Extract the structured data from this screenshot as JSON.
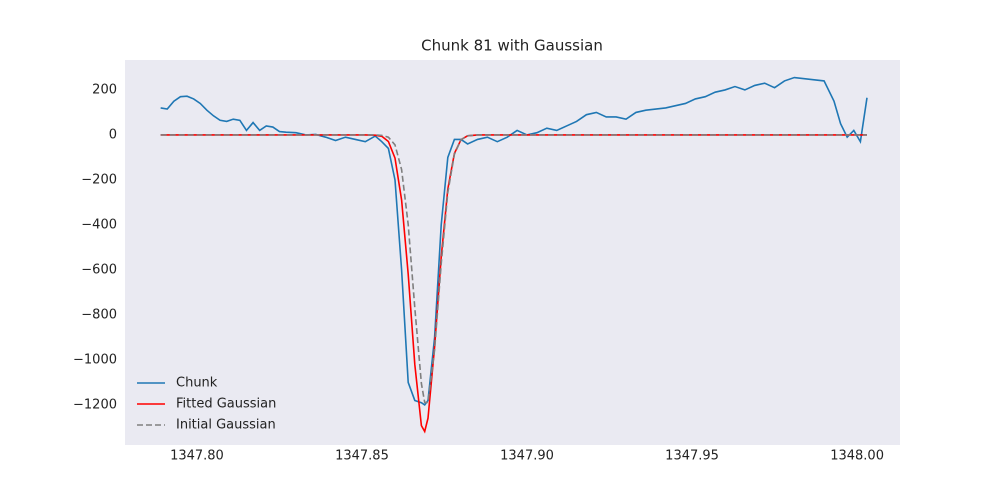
{
  "chart_data": {
    "type": "line",
    "title": "Chunk 81 with Gaussian",
    "x": [
      1347.789,
      1347.791,
      1347.793,
      1347.795,
      1347.797,
      1347.799,
      1347.801,
      1347.803,
      1347.805,
      1347.807,
      1347.809,
      1347.811,
      1347.813,
      1347.815,
      1347.817,
      1347.819,
      1347.821,
      1347.823,
      1347.825,
      1347.827,
      1347.83,
      1347.833,
      1347.836,
      1347.839,
      1347.842,
      1347.845,
      1347.848,
      1347.851,
      1347.854,
      1347.856,
      1347.858,
      1347.86,
      1347.862,
      1347.864,
      1347.866,
      1347.868,
      1347.869,
      1347.87,
      1347.872,
      1347.874,
      1347.876,
      1347.878,
      1347.88,
      1347.882,
      1347.885,
      1347.888,
      1347.891,
      1347.894,
      1347.897,
      1347.9,
      1347.903,
      1347.906,
      1347.909,
      1347.912,
      1347.915,
      1347.918,
      1347.921,
      1347.924,
      1347.927,
      1347.93,
      1347.933,
      1347.936,
      1347.939,
      1347.942,
      1347.945,
      1347.948,
      1347.951,
      1347.954,
      1347.957,
      1347.96,
      1347.963,
      1347.966,
      1347.969,
      1347.972,
      1347.975,
      1347.978,
      1347.981,
      1347.984,
      1347.987,
      1347.99,
      1347.993,
      1347.995,
      1347.997,
      1347.999,
      1348.001,
      1348.003
    ],
    "series": [
      {
        "name": "Chunk",
        "color": "#1f77b4",
        "linestyle": "solid",
        "values": [
          120,
          115,
          150,
          170,
          172,
          160,
          140,
          110,
          85,
          65,
          60,
          70,
          65,
          20,
          55,
          20,
          40,
          35,
          15,
          12,
          10,
          0,
          2,
          -10,
          -25,
          -10,
          -20,
          -30,
          -5,
          -30,
          -60,
          -200,
          -600,
          -1100,
          -1180,
          -1190,
          -1200,
          -1180,
          -900,
          -400,
          -100,
          -20,
          -20,
          -40,
          -20,
          -10,
          -30,
          -10,
          20,
          0,
          10,
          30,
          20,
          40,
          60,
          90,
          100,
          80,
          80,
          70,
          100,
          110,
          115,
          120,
          130,
          140,
          160,
          170,
          190,
          200,
          215,
          200,
          220,
          230,
          210,
          240,
          255,
          250,
          245,
          240,
          150,
          50,
          -10,
          20,
          -30,
          165
        ]
      },
      {
        "name": "Fitted Gaussian",
        "color": "#ff0000",
        "linestyle": "solid",
        "values": [
          0,
          0,
          0,
          0,
          0,
          0,
          0,
          0,
          0,
          0,
          0,
          0,
          0,
          0,
          0,
          0,
          0,
          0,
          0,
          0,
          0,
          0,
          0,
          0,
          0,
          0,
          0,
          0,
          -1,
          -6,
          -29,
          -103,
          -289,
          -619,
          -1020,
          -1292,
          -1318,
          -1259,
          -942,
          -543,
          -241,
          -82,
          -21,
          -4,
          0,
          0,
          0,
          0,
          0,
          0,
          0,
          0,
          0,
          0,
          0,
          0,
          0,
          0,
          0,
          0,
          0,
          0,
          0,
          0,
          0,
          0,
          0,
          0,
          0,
          0,
          0,
          0,
          0,
          0,
          0,
          0,
          0,
          0,
          0,
          0,
          0,
          0,
          0,
          0,
          0,
          0
        ]
      },
      {
        "name": "Initial Gaussian",
        "color": "#7f7f7f",
        "linestyle": "dashed",
        "values": [
          0,
          0,
          0,
          0,
          0,
          0,
          0,
          0,
          0,
          0,
          0,
          0,
          0,
          0,
          0,
          0,
          0,
          0,
          0,
          0,
          0,
          0,
          0,
          0,
          0,
          0,
          0,
          0,
          0,
          -2,
          -10,
          -44,
          -154,
          -398,
          -768,
          -1105,
          -1189,
          -1189,
          -955,
          -573,
          -256,
          -86,
          -21,
          -4,
          0,
          0,
          0,
          0,
          0,
          0,
          0,
          0,
          0,
          0,
          0,
          0,
          0,
          0,
          0,
          0,
          0,
          0,
          0,
          0,
          0,
          0,
          0,
          0,
          0,
          0,
          0,
          0,
          0,
          0,
          0,
          0,
          0,
          0,
          0,
          0,
          0,
          0,
          0,
          0,
          0,
          0
        ]
      }
    ],
    "xlim": [
      1347.7782,
      1348.013
    ],
    "xticks": [
      {
        "value": 1347.8,
        "label": "1347.80"
      },
      {
        "value": 1347.85,
        "label": "1347.85"
      },
      {
        "value": 1347.9,
        "label": "1347.90"
      },
      {
        "value": 1347.95,
        "label": "1347.95"
      },
      {
        "value": 1348.0,
        "label": "1348.00"
      }
    ],
    "ylim": [
      -1378,
      333
    ],
    "yticks": [
      {
        "value": -1200,
        "label": "−1200"
      },
      {
        "value": -1000,
        "label": "−1000"
      },
      {
        "value": -800,
        "label": "−800"
      },
      {
        "value": -600,
        "label": "−600"
      },
      {
        "value": -400,
        "label": "−400"
      },
      {
        "value": -200,
        "label": "−200"
      },
      0,
      200
    ],
    "grid": false,
    "legend": "lower left"
  }
}
